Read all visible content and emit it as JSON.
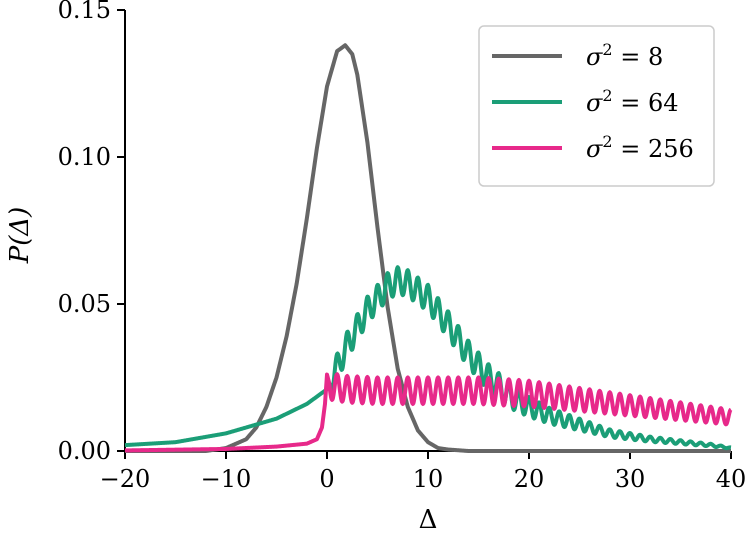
{
  "chart_data": {
    "type": "line",
    "title": "",
    "xlabel": "Δ",
    "ylabel": "P(Δ)",
    "xlim": [
      -20,
      40
    ],
    "ylim": [
      0,
      0.15
    ],
    "xticks": [
      -20,
      -10,
      0,
      10,
      20,
      30,
      40
    ],
    "xtick_labels": [
      "−20",
      "−10",
      "0",
      "10",
      "20",
      "30",
      "40"
    ],
    "yticks": [
      0.0,
      0.05,
      0.1,
      0.15
    ],
    "ytick_labels": [
      "0.00",
      "0.05",
      "0.10",
      "0.15"
    ],
    "grid": false,
    "legend_position": "top-right",
    "series": [
      {
        "name": "σ² = 8",
        "legend_var": "σ",
        "legend_exp": "2",
        "legend_val": "8",
        "color": "#666666",
        "x": [
          -20,
          -14,
          -12,
          -10,
          -8,
          -7,
          -6,
          -5,
          -4,
          -3,
          -2,
          -1,
          0,
          1,
          1.8,
          2.5,
          3,
          4,
          5,
          6,
          7,
          8,
          9,
          10,
          11,
          12,
          14,
          16,
          20,
          30,
          40
        ],
        "y": [
          0.0,
          0.0,
          0.0,
          0.001,
          0.004,
          0.008,
          0.015,
          0.025,
          0.039,
          0.057,
          0.079,
          0.103,
          0.124,
          0.136,
          0.138,
          0.135,
          0.128,
          0.105,
          0.076,
          0.049,
          0.028,
          0.015,
          0.007,
          0.003,
          0.001,
          0.0005,
          0.0,
          0.0,
          0.0,
          0.0,
          0.0
        ]
      },
      {
        "name": "σ² = 64",
        "legend_var": "σ",
        "legend_exp": "2",
        "legend_val": "64",
        "color": "#1b9e77",
        "x": [
          -20,
          -15,
          -10,
          -5,
          -2,
          0,
          2,
          4,
          6,
          7,
          8,
          10,
          12,
          14,
          16,
          18,
          20,
          22,
          25,
          28,
          30,
          32,
          35,
          38,
          40
        ],
        "y": [
          0.002,
          0.003,
          0.006,
          0.011,
          0.016,
          0.021,
          0.036,
          0.048,
          0.056,
          0.058,
          0.057,
          0.052,
          0.043,
          0.033,
          0.025,
          0.019,
          0.015,
          0.012,
          0.009,
          0.006,
          0.005,
          0.004,
          0.003,
          0.002,
          0.001
        ]
      },
      {
        "name": "σ² = 256",
        "legend_var": "σ",
        "legend_exp": "2",
        "legend_val": "256",
        "color": "#e7298a",
        "x": [
          -20,
          -10,
          -5,
          -2,
          -1,
          -0.5,
          -0.2,
          0,
          0.3,
          2,
          5,
          10,
          15,
          20,
          25,
          30,
          35,
          40
        ],
        "y": [
          0.0002,
          0.0007,
          0.0015,
          0.0025,
          0.004,
          0.008,
          0.016,
          0.026,
          0.022,
          0.021,
          0.0205,
          0.0205,
          0.0205,
          0.0195,
          0.0175,
          0.0155,
          0.0135,
          0.0115
        ]
      }
    ]
  }
}
